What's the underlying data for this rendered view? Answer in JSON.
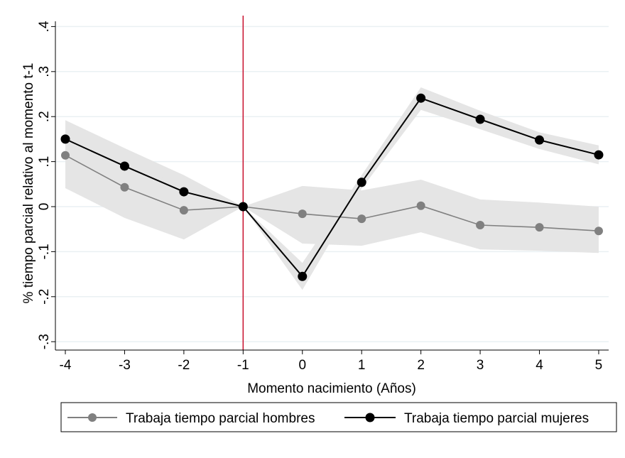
{
  "chart_data": {
    "type": "line",
    "title": "",
    "xlabel": "Momento nacimiento (Años)",
    "ylabel": "% tiempo parcial relativo al momento t-1",
    "x": [
      -4,
      -3,
      -2,
      -1,
      0,
      1,
      2,
      3,
      4,
      5
    ],
    "xticks": [
      "-4",
      "-3",
      "-2",
      "-1",
      "0",
      "1",
      "2",
      "3",
      "4",
      "5"
    ],
    "yticks": [
      ".4",
      ".3",
      ".2",
      ".1",
      "0",
      "-.1",
      "-.2",
      "-.3"
    ],
    "ytick_values": [
      0.4,
      0.3,
      0.2,
      0.1,
      0,
      -0.1,
      -0.2,
      -0.3
    ],
    "xlim": [
      -4.2,
      5.17
    ],
    "ylim": [
      -0.32,
      0.42
    ],
    "grid": true,
    "reference_line": {
      "x": -1,
      "color": "#c8102e"
    },
    "legend_position": "bottom",
    "series": [
      {
        "name": "Trabaja tiempo parcial hombres",
        "color": "#808080",
        "values": [
          0.114,
          0.043,
          -0.008,
          0,
          -0.016,
          -0.027,
          0.002,
          -0.041,
          -0.046,
          -0.054
        ],
        "ci_upper": [
          0.192,
          0.13,
          0.07,
          0,
          0.046,
          0.036,
          0.06,
          0.016,
          0.009,
          0.0
        ],
        "ci_lower": [
          0.041,
          -0.025,
          -0.073,
          0,
          -0.082,
          -0.087,
          -0.057,
          -0.095,
          -0.098,
          -0.103
        ]
      },
      {
        "name": "Trabaja tiempo parcial mujeres",
        "color": "#000000",
        "values": [
          0.15,
          0.09,
          0.033,
          0,
          -0.155,
          0.054,
          0.241,
          0.194,
          0.148,
          0.115
        ],
        "ci_upper": [
          0.16,
          0.1,
          0.043,
          0,
          -0.125,
          0.07,
          0.265,
          0.213,
          0.165,
          0.136
        ],
        "ci_lower": [
          0.14,
          0.08,
          0.023,
          0,
          -0.185,
          0.04,
          0.215,
          0.172,
          0.128,
          0.094
        ]
      }
    ]
  }
}
